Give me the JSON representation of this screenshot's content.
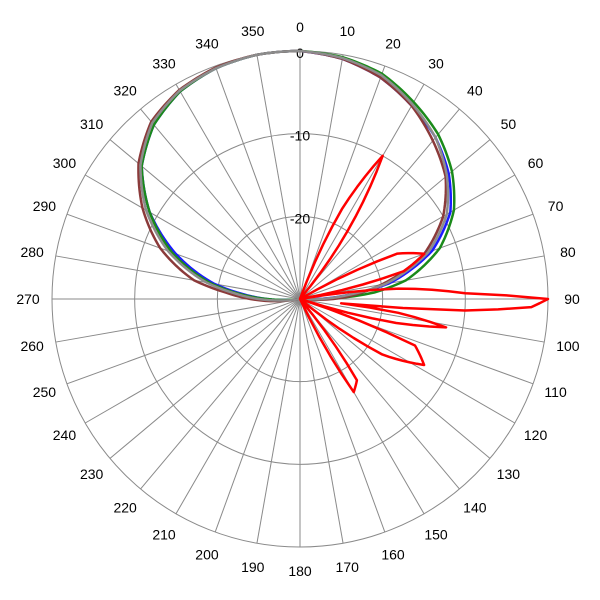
{
  "chart_data": {
    "type": "polar-line",
    "angle_direction": "clockwise",
    "angle_zero": "top",
    "angle_step": 10,
    "angle_labels": [
      "0",
      "10",
      "20",
      "30",
      "40",
      "50",
      "60",
      "70",
      "80",
      "90",
      "100",
      "110",
      "120",
      "130",
      "140",
      "150",
      "160",
      "170",
      "180",
      "190",
      "200",
      "210",
      "220",
      "230",
      "240",
      "250",
      "260",
      "270",
      "280",
      "290",
      "300",
      "310",
      "320",
      "330",
      "340",
      "350"
    ],
    "r_range": [
      -30,
      0
    ],
    "ring_values": [
      -30,
      -20,
      -10,
      0
    ],
    "ring_labels": [
      "-20",
      "-10",
      "0"
    ],
    "grid": true,
    "series": [
      {
        "color": "#1a1aff",
        "points": [
          [
            0,
            0
          ],
          [
            10,
            -0.5
          ],
          [
            20,
            -1.5
          ],
          [
            30,
            -3
          ],
          [
            40,
            -4.5
          ],
          [
            50,
            -6.5
          ],
          [
            60,
            -9
          ],
          [
            70,
            -13
          ],
          [
            80,
            -19
          ],
          [
            85,
            -24
          ],
          [
            90,
            -28
          ],
          [
            95,
            -30
          ],
          [
            100,
            -30
          ],
          [
            260,
            -30
          ],
          [
            265,
            -29
          ],
          [
            270,
            -26
          ],
          [
            275,
            -23
          ],
          [
            280,
            -19.5
          ],
          [
            290,
            -14
          ],
          [
            300,
            -9
          ],
          [
            310,
            -5
          ],
          [
            320,
            -2.5
          ],
          [
            330,
            -1
          ],
          [
            340,
            -0.3
          ],
          [
            350,
            0
          ]
        ]
      },
      {
        "color": "#1a8a1a",
        "points": [
          [
            0,
            0
          ],
          [
            10,
            -0.3
          ],
          [
            20,
            -1
          ],
          [
            30,
            -2.5
          ],
          [
            40,
            -4
          ],
          [
            50,
            -6
          ],
          [
            60,
            -8.5
          ],
          [
            70,
            -12
          ],
          [
            80,
            -17
          ],
          [
            85,
            -21
          ],
          [
            90,
            -27
          ],
          [
            95,
            -30
          ],
          [
            100,
            -30
          ],
          [
            260,
            -30
          ],
          [
            265,
            -29
          ],
          [
            270,
            -26
          ],
          [
            275,
            -22.5
          ],
          [
            280,
            -19
          ],
          [
            290,
            -13.5
          ],
          [
            300,
            -9
          ],
          [
            310,
            -5
          ],
          [
            320,
            -2.5
          ],
          [
            330,
            -1
          ],
          [
            340,
            -0.3
          ],
          [
            350,
            0
          ]
        ]
      },
      {
        "color": "#8b3a3a",
        "points": [
          [
            0,
            0
          ],
          [
            10,
            -0.5
          ],
          [
            20,
            -1.5
          ],
          [
            30,
            -3
          ],
          [
            40,
            -5
          ],
          [
            50,
            -7
          ],
          [
            60,
            -10
          ],
          [
            70,
            -14
          ],
          [
            80,
            -20
          ],
          [
            85,
            -23
          ],
          [
            90,
            -26
          ],
          [
            95,
            -30
          ],
          [
            100,
            -30
          ],
          [
            260,
            -30
          ],
          [
            265,
            -27
          ],
          [
            270,
            -24
          ],
          [
            275,
            -21
          ],
          [
            280,
            -17
          ],
          [
            290,
            -12
          ],
          [
            300,
            -8
          ],
          [
            310,
            -4.5
          ],
          [
            320,
            -2
          ],
          [
            330,
            -0.8
          ],
          [
            340,
            -0.2
          ],
          [
            350,
            0
          ]
        ]
      },
      {
        "color": "#8c8c8c",
        "points": [
          [
            0,
            0
          ],
          [
            10,
            -0.4
          ],
          [
            20,
            -1.2
          ],
          [
            30,
            -2.8
          ],
          [
            40,
            -4.5
          ],
          [
            50,
            -6.8
          ],
          [
            60,
            -9.5
          ],
          [
            70,
            -13.5
          ],
          [
            80,
            -19.5
          ],
          [
            85,
            -24
          ],
          [
            90,
            -27.5
          ],
          [
            95,
            -30
          ],
          [
            100,
            -30
          ],
          [
            260,
            -30
          ],
          [
            265,
            -28
          ],
          [
            270,
            -25
          ],
          [
            275,
            -22
          ],
          [
            280,
            -18.5
          ],
          [
            290,
            -13
          ],
          [
            300,
            -8.5
          ],
          [
            310,
            -4.8
          ],
          [
            320,
            -2.2
          ],
          [
            330,
            -0.9
          ],
          [
            340,
            -0.3
          ],
          [
            350,
            0
          ]
        ]
      },
      {
        "color": "#ff0000",
        "points": [
          [
            0,
            -30
          ],
          [
            20,
            -30
          ],
          [
            25,
            -18
          ],
          [
            30,
            -10
          ],
          [
            34,
            -18
          ],
          [
            40,
            -30
          ],
          [
            60,
            -30
          ],
          [
            65,
            -17
          ],
          [
            70,
            -14
          ],
          [
            75,
            -17
          ],
          [
            80,
            -30
          ],
          [
            84,
            -18
          ],
          [
            88,
            -10
          ],
          [
            90,
            0
          ],
          [
            92,
            -2
          ],
          [
            94,
            -10
          ],
          [
            96,
            -25
          ],
          [
            98,
            -18
          ],
          [
            101,
            -12
          ],
          [
            104,
            -18
          ],
          [
            108,
            -30
          ],
          [
            112,
            -15
          ],
          [
            118,
            -13
          ],
          [
            124,
            -18
          ],
          [
            130,
            -30
          ],
          [
            135,
            -30
          ],
          [
            140,
            -30
          ],
          [
            145,
            -18
          ],
          [
            150,
            -17
          ],
          [
            155,
            -30
          ],
          [
            160,
            -30
          ],
          [
            360,
            -30
          ]
        ]
      }
    ]
  }
}
